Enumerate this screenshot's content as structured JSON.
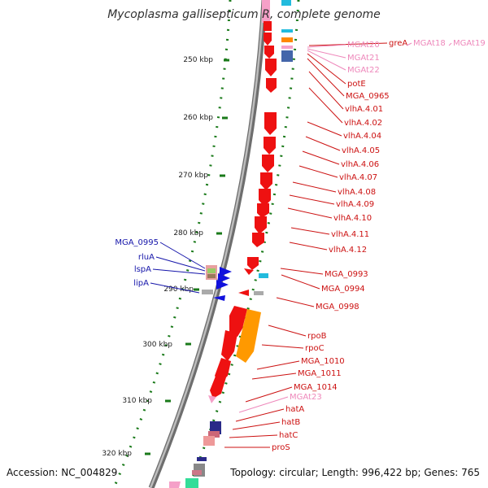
{
  "title": "Mycoplasma gallisepticum R, complete genome",
  "footer": {
    "accession": "Accession: NC_004829",
    "summary": "Topology: circular; Length: 996,422 bp; Genes: 765"
  },
  "colors": {
    "backbone": "#8a8a8a",
    "tick": "#1a7a1a",
    "cds": "#ee1111",
    "trna": "#f5a0c8",
    "rrna": "#22aadd",
    "forward_label": "#1515aa",
    "reverse_label": "#cc1111",
    "trna_label": "#ee88bb"
  },
  "ticks": [
    "250 kbp",
    "260 kbp",
    "270 kbp",
    "280 kbp",
    "290 kbp",
    "300 kbp",
    "310 kbp",
    "320 kbp"
  ],
  "reverse_labels": [
    {
      "text": "greA",
      "type": "cds"
    },
    {
      "text": "MGAt20",
      "type": "trna"
    },
    {
      "text": "MGAt18",
      "type": "trna"
    },
    {
      "text": "MGAt19",
      "type": "trna"
    },
    {
      "text": "MGAt21",
      "type": "trna"
    },
    {
      "text": "MGAt22",
      "type": "trna"
    },
    {
      "text": "potE",
      "type": "cds"
    },
    {
      "text": "MGA_0965",
      "type": "cds"
    },
    {
      "text": "vlhA.4.01",
      "type": "cds"
    },
    {
      "text": "vlhA.4.02",
      "type": "cds"
    },
    {
      "text": "vlhA.4.04",
      "type": "cds"
    },
    {
      "text": "vlhA.4.05",
      "type": "cds"
    },
    {
      "text": "vlhA.4.06",
      "type": "cds"
    },
    {
      "text": "vlhA.4.07",
      "type": "cds"
    },
    {
      "text": "vlhA.4.08",
      "type": "cds"
    },
    {
      "text": "vlhA.4.09",
      "type": "cds"
    },
    {
      "text": "vlhA.4.10",
      "type": "cds"
    },
    {
      "text": "vlhA.4.11",
      "type": "cds"
    },
    {
      "text": "vlhA.4.12",
      "type": "cds"
    },
    {
      "text": "MGA_0993",
      "type": "cds"
    },
    {
      "text": "MGA_0994",
      "type": "cds"
    },
    {
      "text": "MGA_0998",
      "type": "cds"
    },
    {
      "text": "rpoB",
      "type": "cds"
    },
    {
      "text": "rpoC",
      "type": "cds"
    },
    {
      "text": "MGA_1010",
      "type": "cds"
    },
    {
      "text": "MGA_1011",
      "type": "cds"
    },
    {
      "text": "MGA_1014",
      "type": "cds"
    },
    {
      "text": "MGAt23",
      "type": "trna"
    },
    {
      "text": "hatA",
      "type": "cds"
    },
    {
      "text": "hatB",
      "type": "cds"
    },
    {
      "text": "hatC",
      "type": "cds"
    },
    {
      "text": "proS",
      "type": "cds"
    }
  ],
  "forward_labels": [
    {
      "text": "MGA_0995"
    },
    {
      "text": "rluA"
    },
    {
      "text": "lspA"
    },
    {
      "text": "lipA"
    }
  ]
}
